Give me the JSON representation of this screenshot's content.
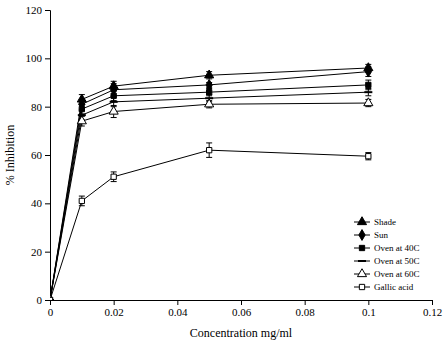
{
  "chart_data": {
    "type": "line",
    "x_label": "Concentration mg/ml",
    "y_label": "% Inhibition",
    "x": [
      0,
      0.01,
      0.02,
      0.05,
      0.1
    ],
    "series": [
      {
        "name": "Shade",
        "color": "#000000",
        "marker": "triangle",
        "line_style": "solid",
        "values": [
          0,
          83,
          88.5,
          93,
          96
        ],
        "errors": [
          0,
          2,
          2,
          1.5,
          1.5
        ]
      },
      {
        "name": "Sun",
        "color": "#000000",
        "marker": "diamond",
        "line_style": "solid",
        "values": [
          0,
          81,
          87,
          89,
          94.5
        ],
        "errors": [
          0,
          2,
          2.5,
          1,
          2
        ]
      },
      {
        "name": "Oven at 40C",
        "color": "#000000",
        "marker": "square",
        "line_style": "solid",
        "values": [
          0,
          79,
          84.5,
          86,
          89
        ],
        "errors": [
          0,
          2,
          2,
          1.5,
          2
        ]
      },
      {
        "name": "Oven at 50C",
        "color": "#000000",
        "marker": "dash",
        "line_style": "solid",
        "values": [
          0,
          76.5,
          82,
          83.5,
          86
        ],
        "errors": [
          0,
          2,
          2,
          1.5,
          1.5
        ]
      },
      {
        "name": "Oven at 60C",
        "color": "#000000",
        "marker": "open-triangle",
        "line_style": "solid",
        "values": [
          0,
          74,
          78,
          81,
          81.5
        ],
        "errors": [
          0,
          2,
          2.5,
          1.5,
          1.5
        ]
      },
      {
        "name": "Gallic acid",
        "color": "#000000",
        "marker": "open-square",
        "line_style": "solid",
        "values": [
          0,
          41,
          51,
          62,
          59.5
        ],
        "errors": [
          0,
          2,
          2,
          3,
          1.5
        ]
      }
    ],
    "xlim": [
      0,
      0.12
    ],
    "xticks": [
      0,
      0.02,
      0.04,
      0.06,
      0.08,
      0.1,
      0.12
    ],
    "ylim": [
      0,
      120
    ],
    "yticks": [
      0,
      20,
      40,
      60,
      80,
      100,
      120
    ],
    "grid": false,
    "legend": "lower right"
  }
}
